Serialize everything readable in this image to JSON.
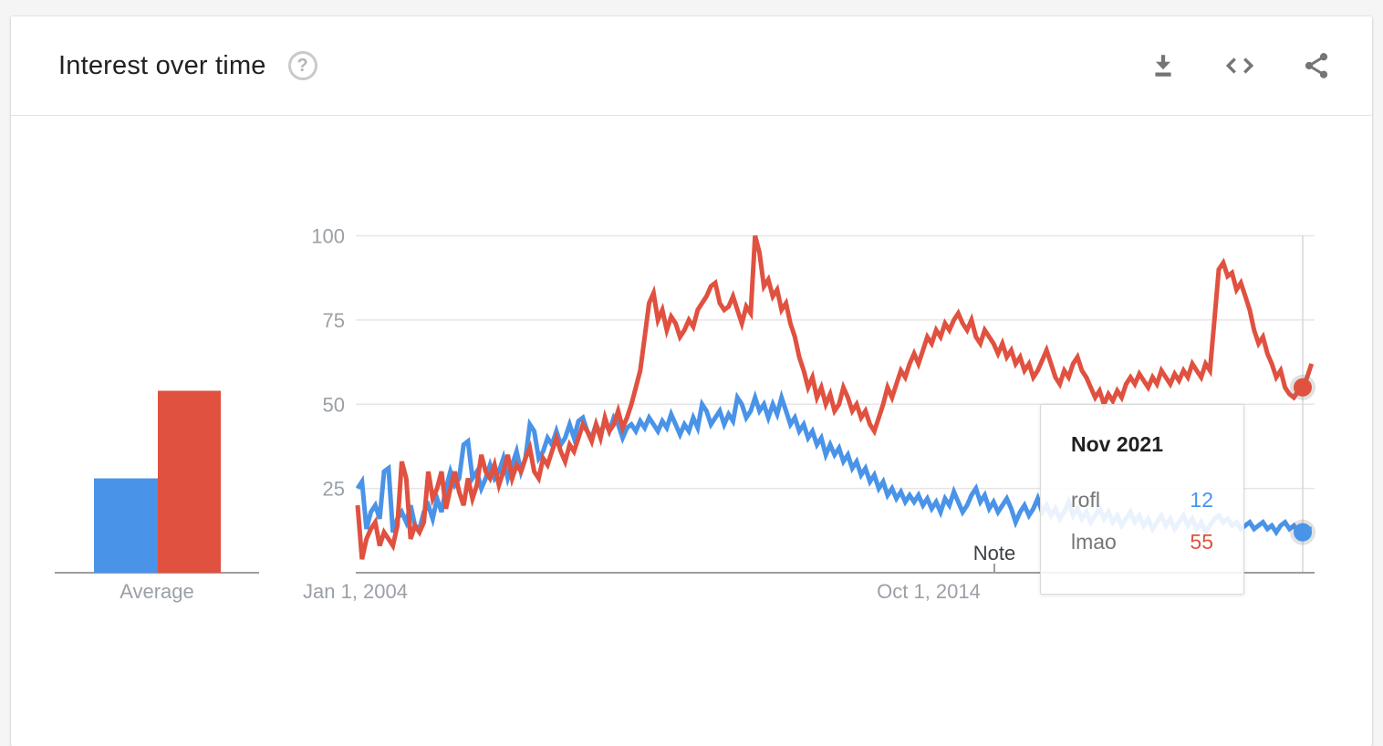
{
  "header": {
    "title": "Interest over time",
    "help_icon": "?",
    "actions": [
      {
        "name": "download",
        "label": "Download CSV"
      },
      {
        "name": "embed",
        "label": "Embed"
      },
      {
        "name": "share",
        "label": "Share"
      }
    ]
  },
  "chart_data": {
    "type": "line",
    "title": "Interest over time",
    "x_tick_labels": [
      "Jan 1, 2004",
      "Oct 1, 2014"
    ],
    "y_tick_labels": [
      25,
      50,
      75,
      100
    ],
    "ylim": [
      0,
      100
    ],
    "grid": "horizontal",
    "annotation_label": "Note",
    "average_label": "Average",
    "series": [
      {
        "name": "rofl",
        "color": "#4993e8",
        "average": 28,
        "values": [
          25,
          27,
          13,
          18,
          20,
          16,
          30,
          31,
          12,
          16,
          18,
          15,
          20,
          14,
          13,
          18,
          20,
          16,
          22,
          18,
          25,
          30,
          26,
          28,
          38,
          39,
          28,
          30,
          25,
          28,
          32,
          28,
          30,
          34,
          28,
          32,
          36,
          30,
          34,
          44,
          42,
          34,
          36,
          40,
          38,
          42,
          38,
          40,
          44,
          40,
          45,
          46,
          42,
          40,
          44,
          41,
          45,
          42,
          46,
          44,
          40,
          43,
          44,
          42,
          45,
          43,
          46,
          44,
          42,
          45,
          43,
          47,
          44,
          41,
          44,
          42,
          46,
          43,
          50,
          48,
          44,
          46,
          48,
          44,
          47,
          45,
          52,
          50,
          46,
          48,
          52,
          48,
          50,
          46,
          50,
          47,
          52,
          48,
          44,
          46,
          42,
          44,
          40,
          42,
          38,
          40,
          35,
          38,
          35,
          37,
          33,
          35,
          31,
          33,
          29,
          31,
          27,
          29,
          25,
          27,
          23,
          25,
          22,
          24,
          21,
          23,
          21,
          23,
          20,
          22,
          19,
          21,
          18,
          22,
          20,
          24,
          21,
          18,
          20,
          23,
          25,
          21,
          23,
          19,
          21,
          18,
          20,
          22,
          19,
          15,
          18,
          20,
          17,
          19,
          22,
          18,
          20,
          17,
          19,
          16,
          18,
          21,
          17,
          19,
          16,
          18,
          15,
          17,
          19,
          16,
          18,
          15,
          17,
          14,
          16,
          18,
          15,
          17,
          14,
          16,
          13,
          15,
          17,
          14,
          16,
          13,
          15,
          17,
          14,
          16,
          13,
          15,
          12,
          14,
          16,
          17,
          15,
          16,
          14,
          15,
          13,
          14,
          15,
          13,
          14,
          15,
          13,
          14,
          12,
          14,
          15,
          13,
          14,
          12,
          12,
          13,
          13
        ]
      },
      {
        "name": "lmao",
        "color": "#e05140",
        "average": 54,
        "values": [
          20,
          4,
          10,
          13,
          15,
          8,
          12,
          10,
          8,
          14,
          33,
          28,
          10,
          14,
          12,
          15,
          30,
          22,
          25,
          30,
          19,
          25,
          30,
          24,
          20,
          28,
          22,
          26,
          35,
          30,
          28,
          32,
          26,
          30,
          35,
          28,
          32,
          30,
          34,
          37,
          30,
          28,
          34,
          32,
          36,
          40,
          36,
          33,
          38,
          36,
          40,
          44,
          42,
          39,
          44,
          40,
          46,
          42,
          44,
          48,
          43,
          46,
          50,
          55,
          60,
          70,
          80,
          83,
          75,
          78,
          72,
          76,
          74,
          70,
          72,
          75,
          73,
          78,
          80,
          82,
          85,
          86,
          80,
          78,
          79,
          82,
          78,
          74,
          79,
          77,
          100,
          95,
          85,
          87,
          82,
          84,
          78,
          80,
          74,
          70,
          64,
          60,
          55,
          58,
          52,
          55,
          50,
          53,
          48,
          50,
          55,
          52,
          48,
          50,
          46,
          48,
          44,
          42,
          46,
          50,
          55,
          52,
          56,
          60,
          58,
          62,
          65,
          62,
          66,
          70,
          68,
          72,
          70,
          74,
          72,
          75,
          77,
          74,
          72,
          75,
          70,
          68,
          72,
          70,
          68,
          65,
          68,
          64,
          66,
          62,
          64,
          60,
          62,
          58,
          60,
          63,
          66,
          62,
          58,
          56,
          60,
          58,
          62,
          64,
          60,
          58,
          55,
          52,
          54,
          50,
          53,
          51,
          54,
          52,
          56,
          58,
          56,
          59,
          57,
          55,
          58,
          56,
          60,
          58,
          56,
          59,
          57,
          60,
          58,
          62,
          60,
          58,
          62,
          60,
          75,
          90,
          92,
          88,
          89,
          84,
          86,
          82,
          78,
          72,
          68,
          70,
          65,
          62,
          58,
          60,
          55,
          53,
          52,
          54,
          55,
          58,
          62
        ]
      }
    ],
    "tooltip": {
      "title": "Nov 2021",
      "hover_index": 214,
      "rows": [
        {
          "term": "rofl",
          "value": "12",
          "color": "#4993e8"
        },
        {
          "term": "lmao",
          "value": "55",
          "color": "#e05140"
        }
      ]
    }
  },
  "colors": {
    "grid": "#e6e6e6",
    "axis": "#9e9e9e",
    "crosshair": "#dcdcdc",
    "tick_text": "#9aa0a6",
    "note_text": "#3c4043",
    "icon_gray": "#757575"
  }
}
